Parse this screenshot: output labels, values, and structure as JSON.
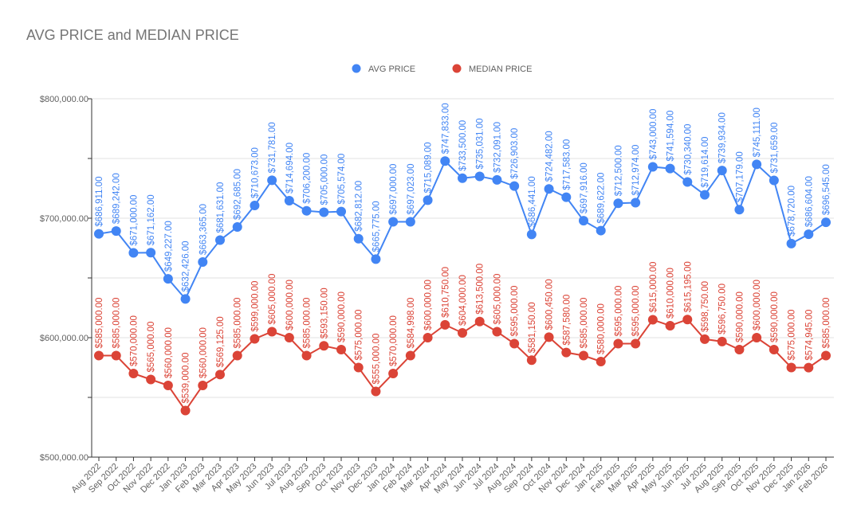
{
  "chart_data": {
    "type": "line",
    "title": "AVG PRICE and MEDIAN PRICE",
    "xlabel": "",
    "ylabel": "",
    "ylim": [
      500000,
      800000
    ],
    "yticks": [
      "$500,000.00",
      "$600,000.00",
      "$700,000.00",
      "$800,000.00"
    ],
    "yticks_values": [
      500000,
      600000,
      700000,
      800000
    ],
    "grid": true,
    "legend": "top-center",
    "categories": [
      "Aug 2022",
      "Sep 2022",
      "Oct 2022",
      "Nov 2022",
      "Dec 2022",
      "Jan 2023",
      "Feb 2023",
      "Mar 2023",
      "Apr 2023",
      "May 2023",
      "Jun 2023",
      "Jul 2023",
      "Aug 2023",
      "Sep 2023",
      "Oct 2023",
      "Nov 2023",
      "Dec 2023",
      "Jan 2024",
      "Feb 2024",
      "Mar 2024",
      "Apr 2024",
      "May 2024",
      "Jun 2024",
      "Jul 2024",
      "Aug 2024",
      "Sep 2024",
      "Oct 2024",
      "Nov 2024",
      "Dec 2024",
      "Jan 2025",
      "Feb 2025",
      "Mar 2025",
      "Apr 2025",
      "May 2025",
      "Jun 2025",
      "Jul 2025",
      "Aug 2025",
      "Sep 2025",
      "Oct 2025",
      "Nov 2025",
      "Dec 2025",
      "Jan 2026",
      "Feb 2026"
    ],
    "series": [
      {
        "name": "AVG PRICE",
        "color": "#4285f4",
        "values": [
          686911,
          689242,
          671000,
          671162,
          649227,
          632426,
          663365,
          681631,
          692685,
          710673,
          731781,
          714694,
          706200,
          705000,
          705574,
          682812,
          665775,
          697000,
          697023,
          715089,
          747833,
          733500,
          735031,
          732091,
          726903,
          686441,
          724482,
          717583,
          697916,
          689622,
          712500,
          712974,
          743000,
          741594,
          730340,
          719614,
          739934,
          707179,
          745111,
          731659,
          678720,
          686604,
          696545
        ]
      },
      {
        "name": "MEDIAN PRICE",
        "color": "#db4437",
        "values": [
          585000,
          585000,
          570000,
          565000,
          560000,
          539000,
          560000,
          569125,
          585000,
          599000,
          605000,
          600000,
          585000,
          593150,
          590000,
          575000,
          555000,
          570000,
          584998,
          600000,
          610750,
          604000,
          613500,
          605000,
          595000,
          581150,
          600450,
          587580,
          585000,
          580000,
          595000,
          595000,
          615000,
          610000,
          615195,
          598750,
          596750,
          590000,
          600000,
          590000,
          575000,
          574945,
          585000
        ]
      }
    ]
  }
}
